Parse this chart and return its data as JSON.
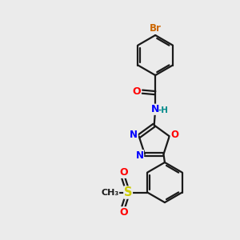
{
  "bg_color": "#ebebeb",
  "bond_color": "#1a1a1a",
  "bond_width": 1.6,
  "atom_colors": {
    "Br": "#cc6600",
    "O": "#ff0000",
    "N": "#0000ff",
    "S": "#cccc00",
    "H": "#008b8b",
    "C": "#1a1a1a"
  },
  "font_size": 8.5,
  "fig_size": [
    3.0,
    3.0
  ],
  "dpi": 100
}
